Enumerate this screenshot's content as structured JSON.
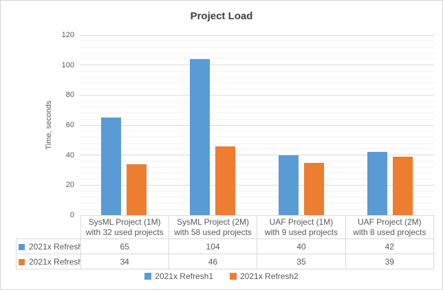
{
  "chart_data": {
    "type": "bar",
    "title": "Project Load",
    "xlabel": "",
    "ylabel": "Time, seconds",
    "ylim": [
      0,
      120
    ],
    "y_major_unit": 20,
    "y_minor_unit": 4,
    "y_ticks": [
      0,
      20,
      40,
      60,
      80,
      100,
      120
    ],
    "grid": true,
    "legend_position": "bottom",
    "data_table_shown": true,
    "categories": [
      "SysML Project (1M)\nwith 32 used projects",
      "SysML Project (2M)\nwith 58 used projects",
      "UAF Project (1M)\nwith 9 used projects",
      "UAF Project (2M)\nwith 8 used projects"
    ],
    "series": [
      {
        "name": "2021x Refresh1",
        "color": "#5b9bd5",
        "values": [
          65,
          104,
          40,
          42
        ]
      },
      {
        "name": "2021x Refresh2",
        "color": "#ed7d31",
        "values": [
          34,
          46,
          35,
          39
        ]
      }
    ]
  },
  "colors": {
    "background": "#ffffff",
    "frame_border": "#d6d6d6",
    "major_gridline": "#d9d9d9",
    "minor_gridline": "#f2f2f2",
    "table_border": "#d9d9d9",
    "title_text": "#404040",
    "axis_text": "#595959"
  }
}
